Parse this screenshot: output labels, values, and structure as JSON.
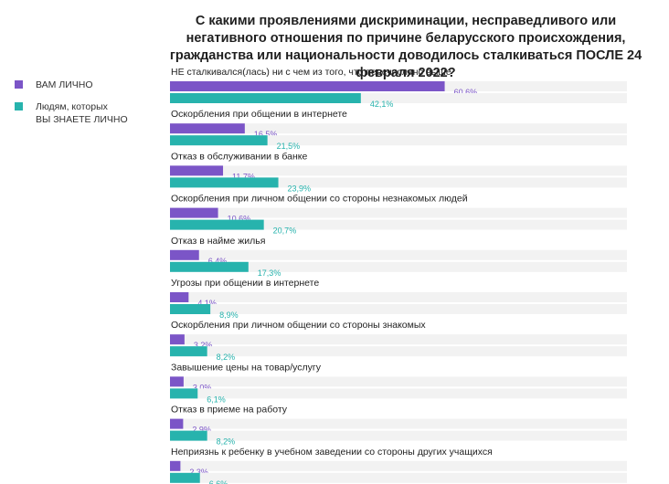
{
  "chart_data": {
    "type": "bar",
    "orientation": "horizontal",
    "title": "С какими проявлениями дискриминации, несправедливого или негативного отношения по причине беларусского происхождения, гражданства или национальности доводилось сталкиваться ПОСЛЕ 24 февраля 2022?",
    "xlim": [
      0,
      100
    ],
    "series": [
      {
        "name": "ВАМ ЛИЧНО",
        "color": "#7b55c7",
        "labels": [
          "60,6%",
          "16,5%",
          "11,7%",
          "10,6%",
          "6,4%",
          "4,1%",
          "3,2%",
          "3,0%",
          "2,9%",
          "2,3%"
        ],
        "values": [
          60.6,
          16.5,
          11.7,
          10.6,
          6.4,
          4.1,
          3.2,
          3.0,
          2.9,
          2.3
        ]
      },
      {
        "name": "Людям, которых ВЫ ЗНАЕТЕ ЛИЧНО",
        "color": "#27b3ad",
        "labels": [
          "42,1%",
          "21,5%",
          "23,9%",
          "20,7%",
          "17,3%",
          "8,9%",
          "8,2%",
          "6,1%",
          "8,2%",
          "6,6%"
        ],
        "values": [
          42.1,
          21.5,
          23.9,
          20.7,
          17.3,
          8.9,
          8.2,
          6.1,
          8.2,
          6.6
        ]
      }
    ],
    "categories": [
      "НЕ сталкивался(лась) ни с чем из того, что перечислено выше",
      "Оскорбления при общении в интернете",
      "Отказ в обслуживании в банке",
      "Оскорбления при личном общении со стороны незнакомых людей",
      "Отказ в найме жилья",
      "Угрозы при общении в интернете",
      "Оскорбления при личном общении со стороны знакомых",
      "Завышение цены на товар/услугу",
      "Отказ в приеме на работу",
      "Неприязнь к ребенку в учебном заведении со стороны других учащихся"
    ]
  },
  "legend": {
    "item1": {
      "line1": "ВАМ ЛИЧНО"
    },
    "item2": {
      "line1": "Людям, которых",
      "line2": "ВЫ ЗНАЕТЕ ЛИЧНО"
    }
  },
  "colors": {
    "purple": "#7b55c7",
    "teal": "#27b3ad",
    "track": "#f2f2f2"
  }
}
